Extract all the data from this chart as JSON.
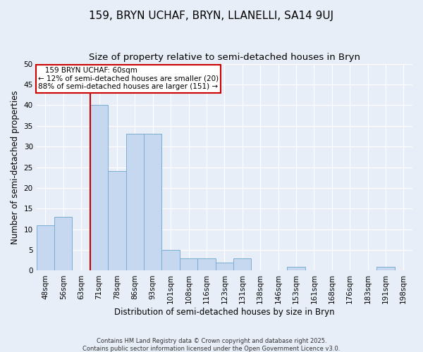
{
  "title": "159, BRYN UCHAF, BRYN, LLANELLI, SA14 9UJ",
  "subtitle": "Size of property relative to semi-detached houses in Bryn",
  "xlabel": "Distribution of semi-detached houses by size in Bryn",
  "ylabel": "Number of semi-detached properties",
  "categories": [
    "48sqm",
    "56sqm",
    "63sqm",
    "71sqm",
    "78sqm",
    "86sqm",
    "93sqm",
    "101sqm",
    "108sqm",
    "116sqm",
    "123sqm",
    "131sqm",
    "138sqm",
    "146sqm",
    "153sqm",
    "161sqm",
    "168sqm",
    "176sqm",
    "183sqm",
    "191sqm",
    "198sqm"
  ],
  "values": [
    11,
    13,
    0,
    40,
    24,
    33,
    33,
    5,
    3,
    3,
    2,
    3,
    0,
    0,
    1,
    0,
    0,
    0,
    0,
    1,
    0
  ],
  "bar_color": "#c5d8f0",
  "bar_edge_color": "#7aadd4",
  "red_line_x": 2.5,
  "ylim": [
    0,
    50
  ],
  "yticks": [
    0,
    5,
    10,
    15,
    20,
    25,
    30,
    35,
    40,
    45,
    50
  ],
  "annotation_title": "159 BRYN UCHAF: 60sqm",
  "annotation_line1": "← 12% of semi-detached houses are smaller (20)",
  "annotation_line2": "88% of semi-detached houses are larger (151) →",
  "annotation_box_color": "#ffffff",
  "annotation_box_edge": "#cc0000",
  "title_fontsize": 11,
  "subtitle_fontsize": 9.5,
  "tick_fontsize": 7.5,
  "label_fontsize": 8.5,
  "annotation_fontsize": 7.5,
  "footer_fontsize": 6,
  "background_color": "#e8eef8",
  "grid_color": "#ffffff",
  "footer_text": "Contains HM Land Registry data © Crown copyright and database right 2025.\nContains public sector information licensed under the Open Government Licence v3.0."
}
